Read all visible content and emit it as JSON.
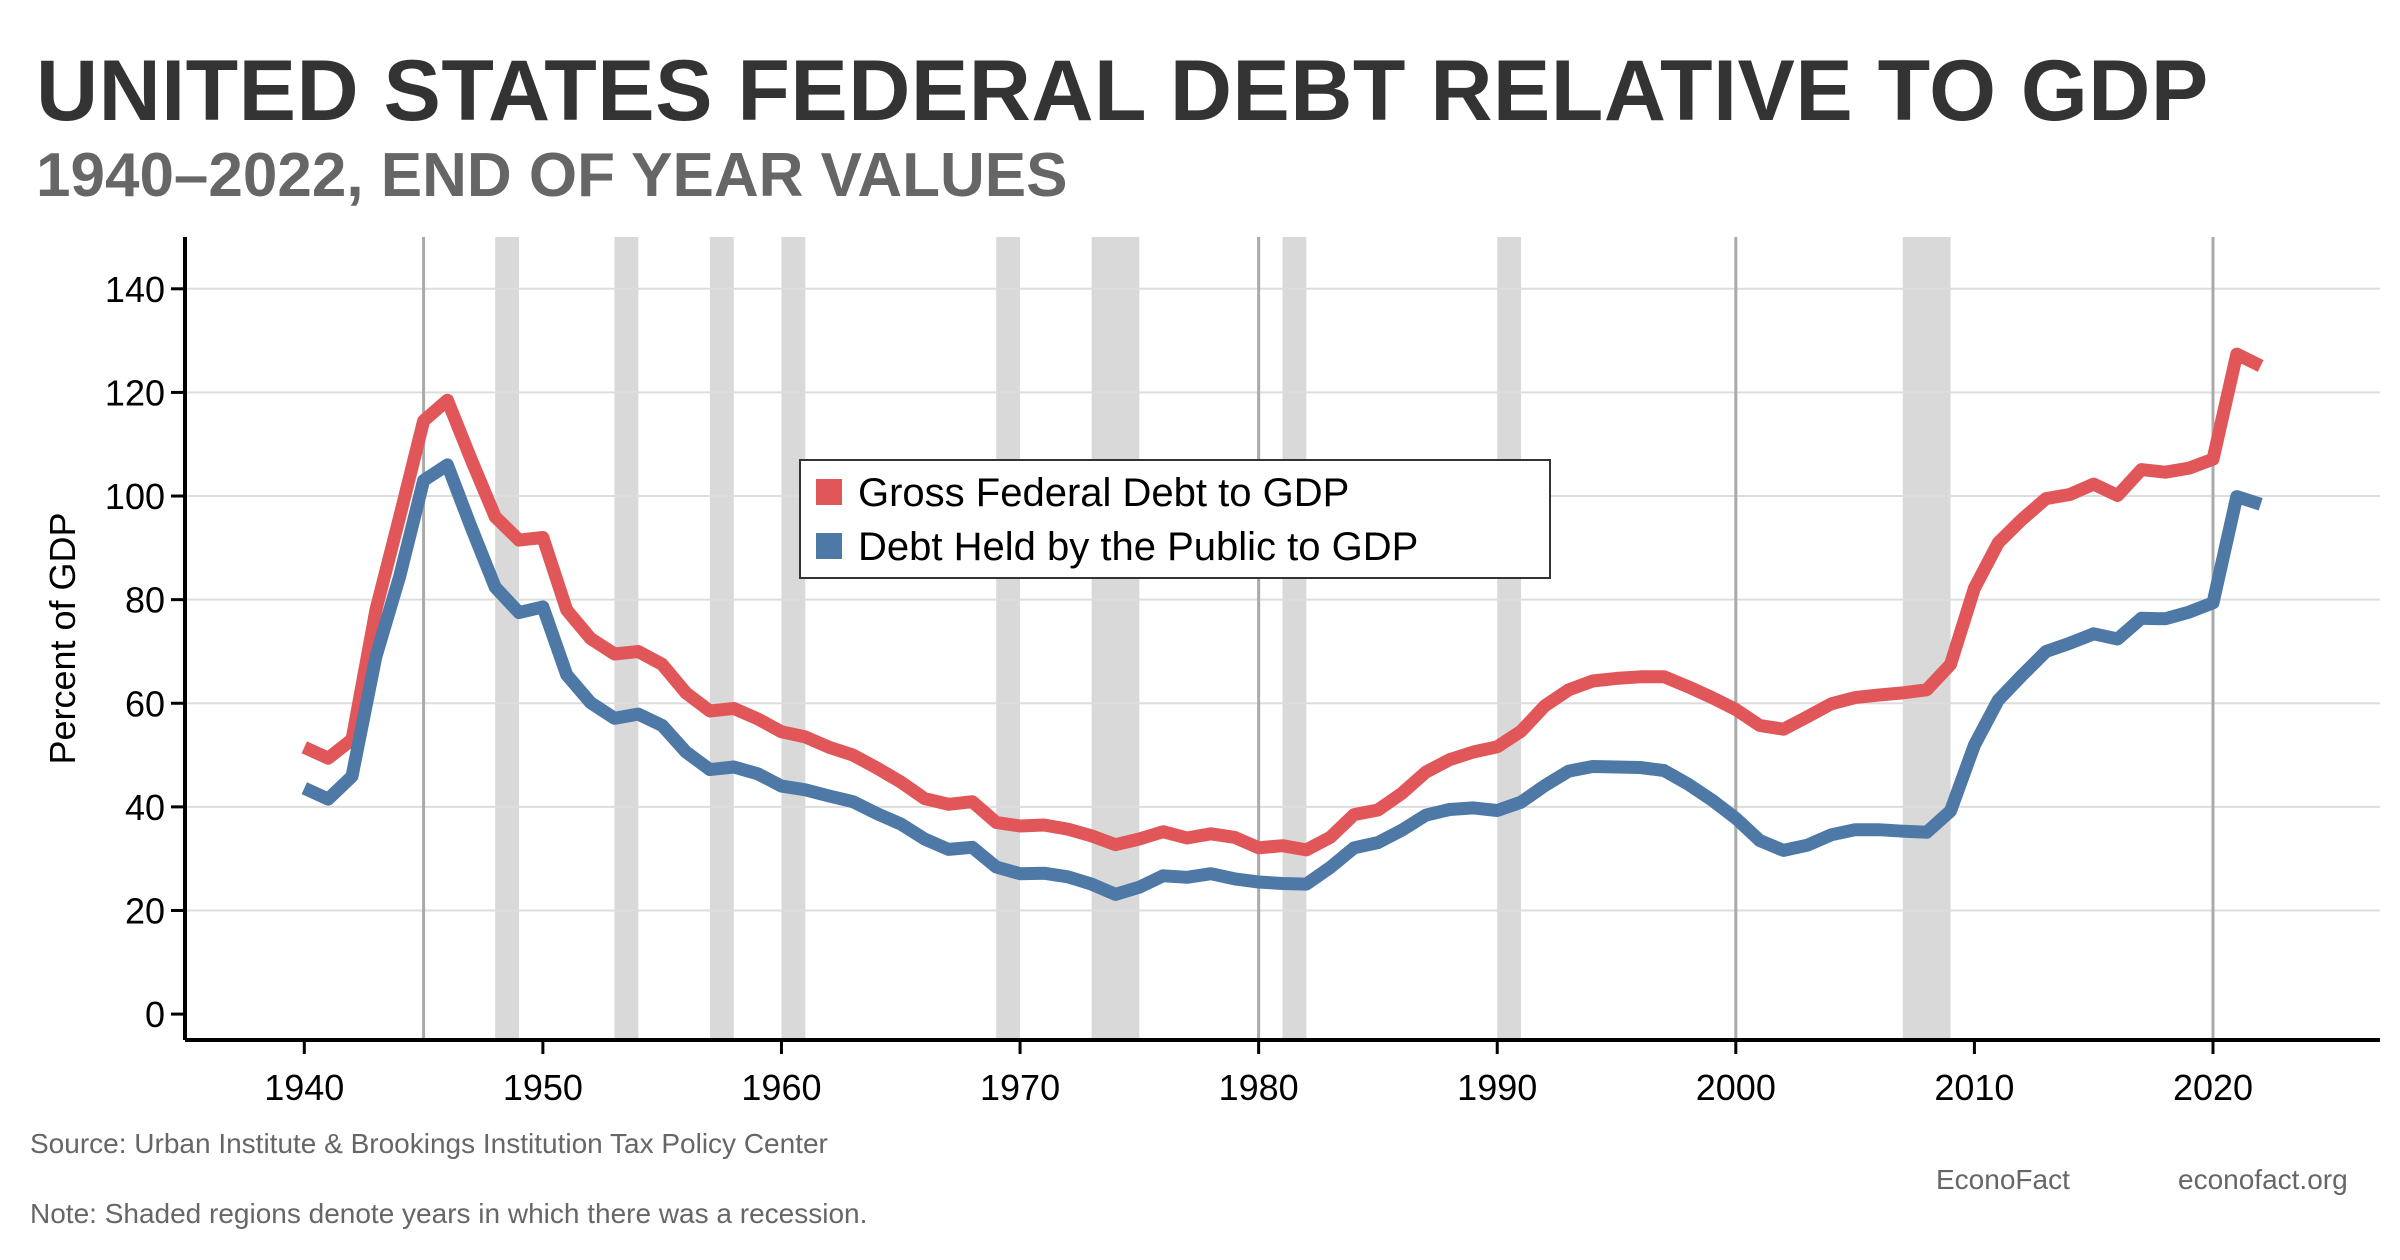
{
  "header": {
    "title": "UNITED STATES FEDERAL DEBT RELATIVE TO GDP",
    "subtitle": "1940–2022, END OF YEAR VALUES"
  },
  "footer": {
    "source": "Source: Urban Institute & Brookings Institution Tax Policy Center",
    "note": "Note: Shaded regions denote years in which there was a recession.",
    "brand": "EconoFact",
    "site": "econofact.org"
  },
  "chart_data": {
    "type": "line",
    "title": "UNITED STATES FEDERAL DEBT RELATIVE TO GDP",
    "subtitle": "1940–2022, END OF YEAR VALUES",
    "xlabel": "",
    "ylabel": "Percent of GDP",
    "xlim": [
      1935,
      2027
    ],
    "ylim": [
      -5,
      150
    ],
    "xticks": [
      1940,
      1950,
      1960,
      1970,
      1980,
      1990,
      2000,
      2010,
      2020
    ],
    "yticks": [
      0,
      20,
      40,
      60,
      80,
      100,
      120,
      140
    ],
    "grid": "horizontal",
    "legend_position": "center",
    "vlines": [
      1945,
      1980,
      2000,
      2020
    ],
    "recessions": [
      [
        1948,
        1949
      ],
      [
        1953,
        1954
      ],
      [
        1957,
        1958
      ],
      [
        1960,
        1961
      ],
      [
        1969,
        1970
      ],
      [
        1973,
        1975
      ],
      [
        1981,
        1982
      ],
      [
        1990,
        1991
      ],
      [
        2007,
        2009
      ]
    ],
    "x": [
      1940,
      1941,
      1942,
      1943,
      1944,
      1945,
      1946,
      1947,
      1948,
      1949,
      1950,
      1951,
      1952,
      1953,
      1954,
      1955,
      1956,
      1957,
      1958,
      1959,
      1960,
      1961,
      1962,
      1963,
      1964,
      1965,
      1966,
      1967,
      1968,
      1969,
      1970,
      1971,
      1972,
      1973,
      1974,
      1975,
      1976,
      1977,
      1978,
      1979,
      1980,
      1981,
      1982,
      1983,
      1984,
      1985,
      1986,
      1987,
      1988,
      1989,
      1990,
      1991,
      1992,
      1993,
      1994,
      1995,
      1996,
      1997,
      1998,
      1999,
      2000,
      2001,
      2002,
      2003,
      2004,
      2005,
      2006,
      2007,
      2008,
      2009,
      2010,
      2011,
      2012,
      2013,
      2014,
      2015,
      2016,
      2017,
      2018,
      2019,
      2020,
      2021,
      2022
    ],
    "series": [
      {
        "name": "Gross Federal Debt to GDP",
        "color": "#e15759",
        "values": [
          51.5,
          49.4,
          53,
          78,
          96,
          114.5,
          118.5,
          107,
          96,
          91.5,
          92,
          78,
          72.5,
          69.5,
          70,
          67.5,
          62,
          58.5,
          59,
          57,
          54.5,
          53.5,
          51.5,
          50,
          47.5,
          44.8,
          41.6,
          40.5,
          41,
          37,
          36.3,
          36.5,
          35.7,
          34.4,
          32.7,
          33.8,
          35.2,
          34,
          34.8,
          34.1,
          32.1,
          32.5,
          31.7,
          34.1,
          38.5,
          39.4,
          42.6,
          46.7,
          49.1,
          50.6,
          51.6,
          54.6,
          59.5,
          62.6,
          64.3,
          64.8,
          65.1,
          65.1,
          63.2,
          61.1,
          58.8,
          55.7,
          55,
          57.4,
          59.9,
          61.1,
          61.6,
          62,
          62.6,
          67.5,
          82.2,
          91,
          95.5,
          99.5,
          100.3,
          102.3,
          100.1,
          105.1,
          104.6,
          105.4,
          107.1,
          127.4,
          125.1
        ]
      },
      {
        "name": "Debt Held by the Public to GDP",
        "color": "#4e79a7",
        "values": [
          43.6,
          41.5,
          45.9,
          69,
          84.5,
          103,
          106,
          93.9,
          82.4,
          77.5,
          78.6,
          65.5,
          60.1,
          57.1,
          57.9,
          55.7,
          50.6,
          47.2,
          47.7,
          46.4,
          44,
          43.3,
          42.1,
          41,
          38.7,
          36.7,
          33.8,
          31.8,
          32.2,
          28.4,
          27.1,
          27.2,
          26.5,
          25.1,
          23.1,
          24.5,
          26.7,
          26.4,
          27.1,
          26.1,
          25.5,
          25.2,
          25.1,
          28.3,
          32.1,
          33.1,
          35.5,
          38.4,
          39.5,
          39.8,
          39.3,
          40.9,
          44.1,
          46.9,
          47.8,
          47.7,
          47.6,
          47,
          44.4,
          41.3,
          37.8,
          33.5,
          31.6,
          32.6,
          34.6,
          35.6,
          35.6,
          35.3,
          35.1,
          39.2,
          51.9,
          60.6,
          65.4,
          70,
          71.6,
          73.4,
          72.4,
          76.4,
          76.3,
          77.6,
          79.4,
          99.9,
          98.4
        ]
      }
    ]
  }
}
